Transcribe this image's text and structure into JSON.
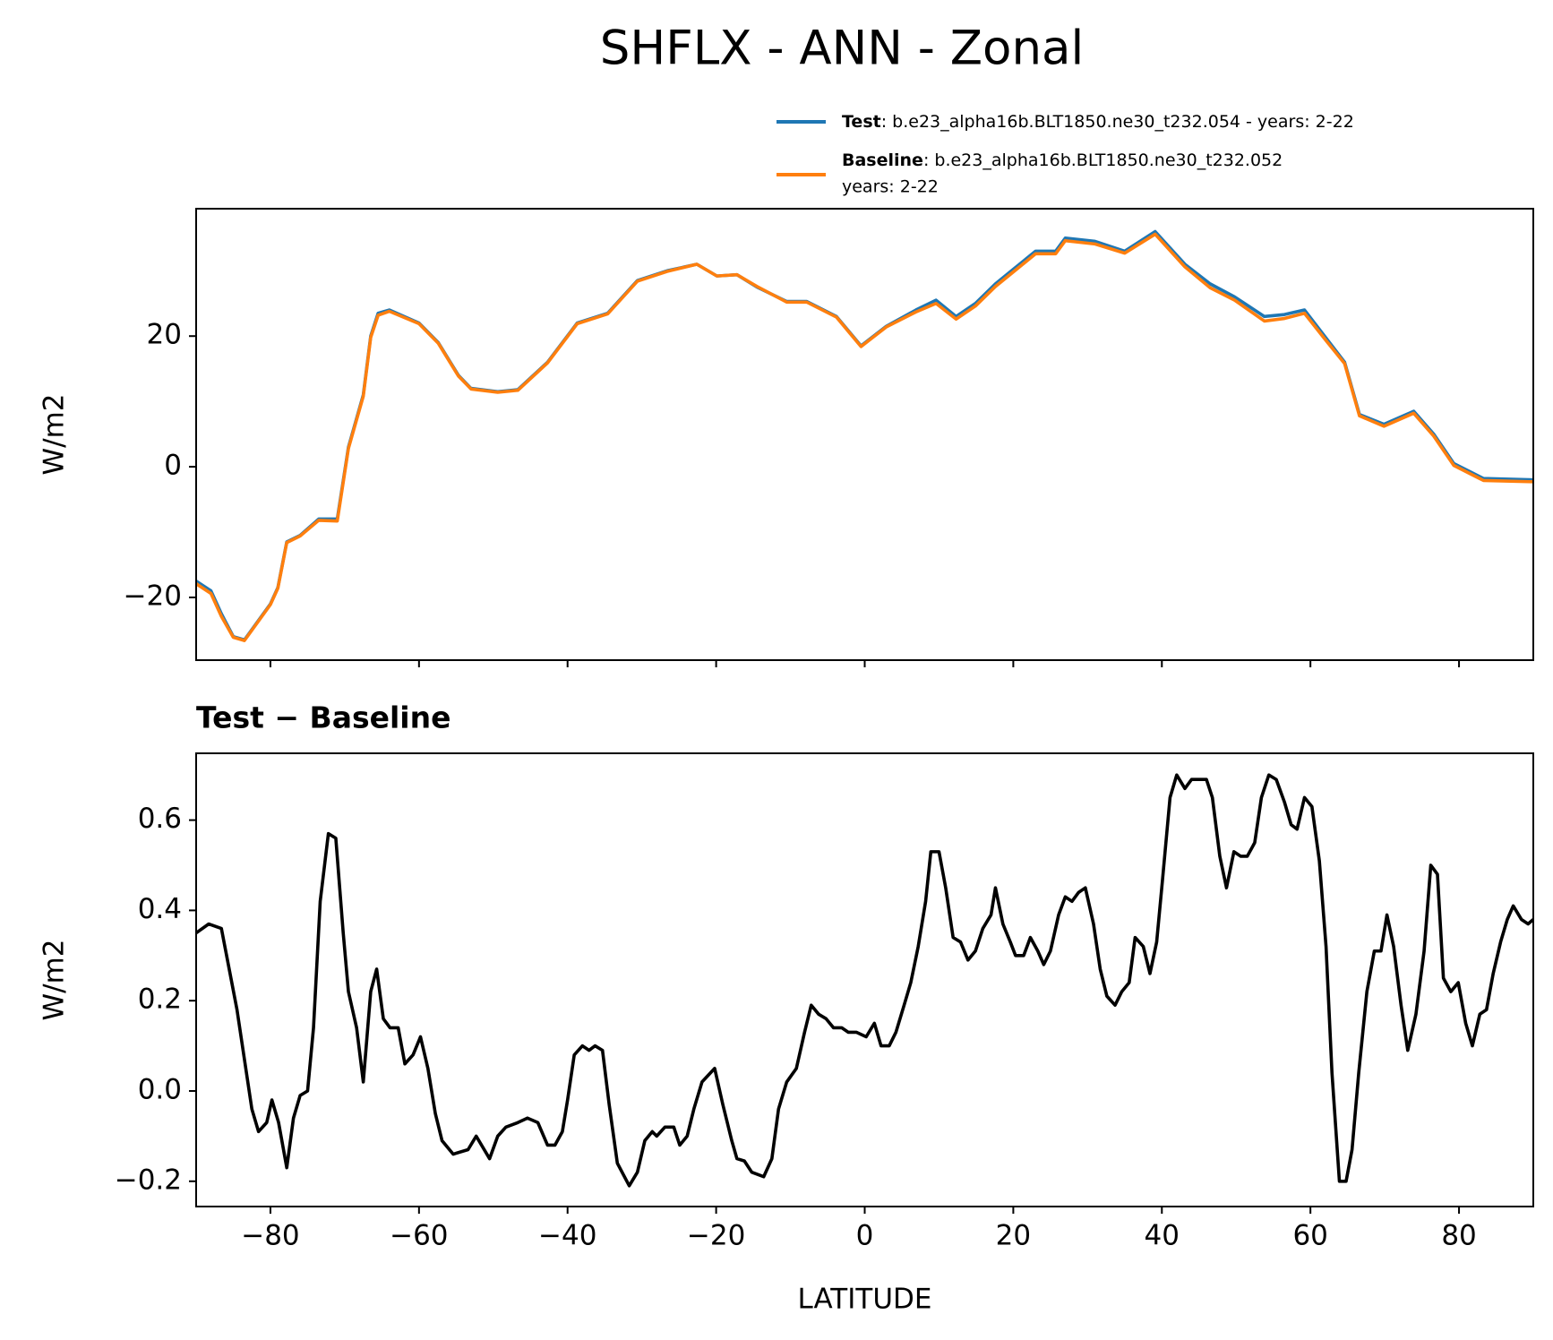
{
  "chart_data": [
    {
      "type": "line",
      "title": "SHFLX - ANN - Zonal",
      "ylabel": "W/m2",
      "x": [
        -90,
        -88,
        -86.6,
        -85,
        -83.5,
        -80,
        -79,
        -77.8,
        -76,
        -73.5,
        -71,
        -69.5,
        -67.5,
        -66.5,
        -65.5,
        -64,
        -60,
        -57.4,
        -54.7,
        -53,
        -49.4,
        -46.7,
        -42.7,
        -38.7,
        -34.6,
        -30.6,
        -26.6,
        -22.6,
        -19.9,
        -17.2,
        -14.5,
        -10.5,
        -7.8,
        -3.8,
        -0.5,
        2.9,
        6.9,
        9.6,
        12.3,
        14.9,
        17.6,
        20.3,
        23,
        25.7,
        27,
        31,
        35,
        39.1,
        43.1,
        46.5,
        49.8,
        53.8,
        56.5,
        59.2,
        61.9,
        64.6,
        66.6,
        69.9,
        73.9,
        76.6,
        79.3,
        83.3,
        90
      ],
      "series": [
        {
          "name": "Test",
          "label": [
            ": b.e23_alpha16b.BLT1850.ne30_t232.054 - years: 2-22"
          ],
          "color": "#1f77b4",
          "values": [
            -17.5,
            -19,
            -22.5,
            -26,
            -26.5,
            -21,
            -18.5,
            -11.5,
            -10.5,
            -8,
            -8,
            3,
            11,
            20,
            23.5,
            24,
            22,
            19,
            14,
            12,
            11.5,
            11.8,
            16,
            22,
            23.5,
            28.5,
            30,
            31,
            29.2,
            29.4,
            27.5,
            25.3,
            25.3,
            23,
            18.5,
            21.5,
            24,
            25.5,
            23,
            25,
            28,
            30.5,
            33,
            33,
            35,
            34.5,
            33,
            36,
            31,
            28,
            26,
            23,
            23.3,
            24,
            20,
            16,
            8,
            6.5,
            8.5,
            5,
            0.5,
            -1.8,
            -2
          ]
        },
        {
          "name": "Baseline",
          "label": [
            ": b.e23_alpha16b.BLT1850.ne30_t232.052",
            "years: 2-22"
          ],
          "color": "#ff7f0e",
          "values": [
            -17.9,
            -19.4,
            -22.9,
            -26.1,
            -26.6,
            -21.1,
            -18.6,
            -11.6,
            -10.6,
            -8.2,
            -8.3,
            2.8,
            10.8,
            19.8,
            23.2,
            23.8,
            21.9,
            18.9,
            13.9,
            11.9,
            11.4,
            11.7,
            15.9,
            21.9,
            23.4,
            28.4,
            29.9,
            31,
            29.2,
            29.4,
            27.6,
            25.2,
            25.2,
            22.9,
            18.4,
            21.4,
            23.7,
            25,
            22.6,
            24.6,
            27.6,
            30.1,
            32.6,
            32.6,
            34.6,
            34.1,
            32.7,
            35.6,
            30.6,
            27.4,
            25.5,
            22.3,
            22.7,
            23.5,
            19.6,
            15.8,
            7.8,
            6.2,
            8.2,
            4.7,
            0.2,
            -2.1,
            -2.3
          ]
        }
      ],
      "xlim": [
        -90,
        90
      ],
      "xticks": [
        -80,
        -60,
        -40,
        -20,
        0,
        20,
        40,
        60,
        80
      ],
      "ylim": [
        -29.6,
        39.5
      ],
      "yticks": [
        {
          "value": -20,
          "label": "−20"
        },
        0,
        20
      ]
    },
    {
      "type": "line",
      "title": "Test − Baseline",
      "ylabel": "W/m2",
      "xlabel": "LATITUDE",
      "x": [
        -90,
        -88.3,
        -86.6,
        -84.5,
        -82.5,
        -81.6,
        -80.5,
        -79.8,
        -78.9,
        -77.8,
        -76.9,
        -76,
        -75,
        -74.2,
        -73.3,
        -72.2,
        -71.2,
        -70.2,
        -69.5,
        -68.4,
        -67.5,
        -66.5,
        -65.7,
        -64.8,
        -63.9,
        -62.8,
        -61.9,
        -60.8,
        -59.8,
        -58.8,
        -57.8,
        -56.9,
        -55.4,
        -53.4,
        -52.3,
        -50.5,
        -49.4,
        -48.3,
        -46.7,
        -45.4,
        -44,
        -42.7,
        -41.7,
        -40.7,
        -40,
        -39.1,
        -38,
        -37.1,
        -36.3,
        -35.3,
        -34.4,
        -33.3,
        -31.7,
        -30.6,
        -29.6,
        -28.6,
        -28,
        -26.9,
        -25.7,
        -24.9,
        -23.9,
        -23,
        -21.9,
        -20.2,
        -19.1,
        -17.9,
        -17.2,
        -16.2,
        -15.2,
        -13.6,
        -12.5,
        -11.6,
        -10.5,
        -9.2,
        -8.1,
        -7.2,
        -6.2,
        -5.2,
        -4.2,
        -3.1,
        -2.2,
        -1.1,
        0.2,
        1.3,
        2.2,
        3.3,
        4.2,
        5.3,
        6.2,
        7.2,
        8.2,
        8.9,
        10,
        10.9,
        11.9,
        12.9,
        13.9,
        14.9,
        15.9,
        17,
        17.6,
        18.6,
        19.6,
        20.3,
        21.4,
        22.3,
        23.3,
        24.1,
        25,
        26.1,
        27,
        27.9,
        28.8,
        29.7,
        30.8,
        31.7,
        32.6,
        33.7,
        34.6,
        35.6,
        36.4,
        37.5,
        38.4,
        39.3,
        40.1,
        41.1,
        42,
        43.1,
        44,
        45,
        46,
        46.8,
        47.8,
        48.7,
        49.7,
        50.6,
        51.5,
        52.5,
        53.4,
        54.4,
        55.4,
        56.5,
        57.4,
        58.2,
        59.2,
        60.2,
        61.2,
        62.1,
        62.9,
        63.9,
        64.8,
        65.6,
        66.5,
        67.6,
        68.6,
        69.5,
        70.3,
        71.2,
        72.2,
        73.1,
        74.2,
        75.3,
        76.2,
        77.1,
        77.9,
        78.9,
        79.9,
        80.9,
        81.8,
        82.8,
        83.7,
        84.6,
        85.6,
        86.5,
        87.3,
        88.4,
        89.3,
        90
      ],
      "series": [
        {
          "name": "Test − Baseline",
          "color": "#000000",
          "values": [
            0.35,
            0.37,
            0.36,
            0.18,
            -0.04,
            -0.09,
            -0.07,
            -0.02,
            -0.07,
            -0.17,
            -0.06,
            -0.01,
            0,
            0.14,
            0.42,
            0.57,
            0.56,
            0.35,
            0.22,
            0.14,
            0.02,
            0.22,
            0.27,
            0.16,
            0.14,
            0.14,
            0.06,
            0.08,
            0.12,
            0.05,
            -0.05,
            -0.11,
            -0.14,
            -0.13,
            -0.1,
            -0.15,
            -0.1,
            -0.08,
            -0.07,
            -0.06,
            -0.07,
            -0.12,
            -0.12,
            -0.09,
            -0.02,
            0.08,
            0.1,
            0.09,
            0.1,
            0.09,
            -0.03,
            -0.16,
            -0.21,
            -0.18,
            -0.11,
            -0.09,
            -0.1,
            -0.08,
            -0.08,
            -0.12,
            -0.1,
            -0.04,
            0.02,
            0.05,
            -0.03,
            -0.11,
            -0.15,
            -0.155,
            -0.18,
            -0.19,
            -0.15,
            -0.04,
            0.02,
            0.05,
            0.13,
            0.19,
            0.17,
            0.16,
            0.14,
            0.14,
            0.13,
            0.13,
            0.12,
            0.15,
            0.1,
            0.1,
            0.13,
            0.19,
            0.24,
            0.32,
            0.42,
            0.53,
            0.53,
            0.45,
            0.34,
            0.33,
            0.29,
            0.31,
            0.36,
            0.39,
            0.45,
            0.37,
            0.33,
            0.3,
            0.3,
            0.34,
            0.31,
            0.28,
            0.31,
            0.39,
            0.43,
            0.42,
            0.44,
            0.45,
            0.37,
            0.27,
            0.21,
            0.19,
            0.22,
            0.24,
            0.34,
            0.32,
            0.26,
            0.33,
            0.47,
            0.65,
            0.7,
            0.67,
            0.69,
            0.69,
            0.69,
            0.65,
            0.52,
            0.45,
            0.53,
            0.52,
            0.52,
            0.55,
            0.65,
            0.7,
            0.69,
            0.64,
            0.59,
            0.58,
            0.65,
            0.63,
            0.51,
            0.32,
            0.04,
            -0.2,
            -0.2,
            -0.13,
            0.04,
            0.22,
            0.31,
            0.31,
            0.39,
            0.32,
            0.19,
            0.09,
            0.17,
            0.31,
            0.5,
            0.48,
            0.25,
            0.22,
            0.24,
            0.15,
            0.1,
            0.17,
            0.18,
            0.26,
            0.33,
            0.38,
            0.41,
            0.38,
            0.37,
            0.38
          ]
        }
      ],
      "xlim": [
        -90,
        90
      ],
      "xticks": [
        {
          "value": -80,
          "label": "−80"
        },
        {
          "value": -60,
          "label": "−60"
        },
        {
          "value": -40,
          "label": "−40"
        },
        {
          "value": -20,
          "label": "−20"
        },
        0,
        20,
        40,
        60,
        80
      ],
      "ylim": [
        -0.256,
        0.748
      ],
      "yticks": [
        {
          "value": -0.2,
          "label": "−0.2"
        },
        {
          "value": 0,
          "label": "0.0"
        },
        0.2,
        0.4,
        0.6
      ]
    }
  ]
}
